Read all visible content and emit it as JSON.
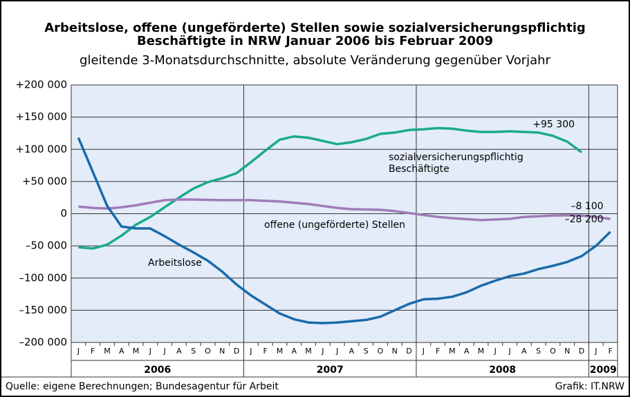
{
  "chart_data": {
    "type": "line",
    "title": "Arbeitslose, offene (ungeförderte) Stellen sowie sozialversicherungspflichtig Beschäftigte in NRW Januar 2006 bis Februar 2009",
    "subtitle": "gleitende 3-Monatsdurchschnitte, absolute Veränderung gegenüber Vorjahr",
    "categories": [
      "J",
      "F",
      "M",
      "A",
      "M",
      "J",
      "J",
      "A",
      "S",
      "O",
      "N",
      "D",
      "J",
      "F",
      "M",
      "A",
      "M",
      "J",
      "J",
      "A",
      "S",
      "O",
      "N",
      "D",
      "J",
      "F",
      "M",
      "A",
      "M",
      "J",
      "J",
      "A",
      "S",
      "O",
      "N",
      "D",
      "J",
      "F"
    ],
    "years": [
      {
        "label": "2006",
        "span": 12
      },
      {
        "label": "2007",
        "span": 12
      },
      {
        "label": "2008",
        "span": 12
      },
      {
        "label": "2009",
        "span": 2
      }
    ],
    "ylim": [
      -200000,
      200000
    ],
    "yticks": [
      {
        "value": -200000,
        "label": "–200 000"
      },
      {
        "value": -150000,
        "label": "–150 000"
      },
      {
        "value": -100000,
        "label": "–100 000"
      },
      {
        "value": -50000,
        "label": "–50 000"
      },
      0,
      {
        "value": 50000,
        "label": "+50 000"
      },
      {
        "value": 100000,
        "label": "+100 000"
      },
      {
        "value": 150000,
        "label": "+150 000"
      },
      {
        "value": 200000,
        "label": "+200 000"
      }
    ],
    "grid": true,
    "series": [
      {
        "name": "sozialversicherungspflichtig Beschäftigte",
        "color": "#1aaa8e",
        "values": [
          -52000,
          -54000,
          -48000,
          -34000,
          -17000,
          -5000,
          10000,
          25000,
          39000,
          49000,
          55000,
          63000,
          80000,
          98000,
          115000,
          120000,
          118000,
          113000,
          108000,
          111000,
          116000,
          124000,
          126000,
          130000,
          131000,
          133000,
          132000,
          129000,
          127000,
          127000,
          128000,
          127000,
          126000,
          121000,
          112000,
          95300,
          null,
          null
        ],
        "value_labels": [
          null,
          null,
          null,
          null,
          null,
          null,
          null,
          null,
          null,
          null,
          null,
          null,
          null,
          null,
          null,
          null,
          null,
          null,
          null,
          null,
          null,
          null,
          null,
          null,
          null,
          null,
          null,
          null,
          null,
          null,
          null,
          null,
          null,
          null,
          null,
          "+95 300",
          null,
          null
        ]
      },
      {
        "name": "offene (ungeförderte) Stellen",
        "color": "#a07cb8",
        "values": [
          11000,
          9000,
          8000,
          10000,
          13000,
          17000,
          21000,
          22000,
          22000,
          21500,
          21000,
          21000,
          21000,
          20000,
          19000,
          17000,
          15000,
          12000,
          9000,
          7000,
          6500,
          6000,
          4000,
          1000,
          -2000,
          -5000,
          -7000,
          -8500,
          -10000,
          -9000,
          -8000,
          -5000,
          -4000,
          -3000,
          -2500,
          -3000,
          -5000,
          -8100
        ],
        "value_labels": [
          null,
          null,
          null,
          null,
          null,
          null,
          null,
          null,
          null,
          null,
          null,
          null,
          null,
          null,
          null,
          null,
          null,
          null,
          null,
          null,
          null,
          null,
          null,
          null,
          null,
          null,
          null,
          null,
          null,
          null,
          null,
          null,
          null,
          null,
          null,
          null,
          null,
          "–8 100"
        ]
      },
      {
        "name": "Arbeitslose",
        "color": "#1a6aab",
        "values": [
          118000,
          65000,
          12000,
          -20000,
          -23000,
          -23000,
          -35000,
          -48000,
          -60000,
          -73000,
          -90000,
          -110000,
          -127000,
          -141000,
          -155000,
          -164000,
          -169000,
          -170000,
          -169000,
          -167000,
          -165000,
          -160000,
          -150000,
          -140000,
          -133000,
          -132000,
          -129000,
          -122000,
          -112000,
          -104000,
          -97000,
          -93000,
          -86000,
          -81000,
          -75000,
          -66000,
          -50000,
          -28200
        ],
        "value_labels": [
          null,
          null,
          null,
          null,
          null,
          null,
          null,
          null,
          null,
          null,
          null,
          null,
          null,
          null,
          null,
          null,
          null,
          null,
          null,
          null,
          null,
          null,
          null,
          null,
          null,
          null,
          null,
          null,
          null,
          null,
          null,
          null,
          null,
          null,
          null,
          null,
          null,
          "–28 200"
        ]
      }
    ],
    "source": "Quelle: eigene Berechnungen; Bundesagentur für Arbeit",
    "credit": "Grafik: IT.NRW"
  }
}
